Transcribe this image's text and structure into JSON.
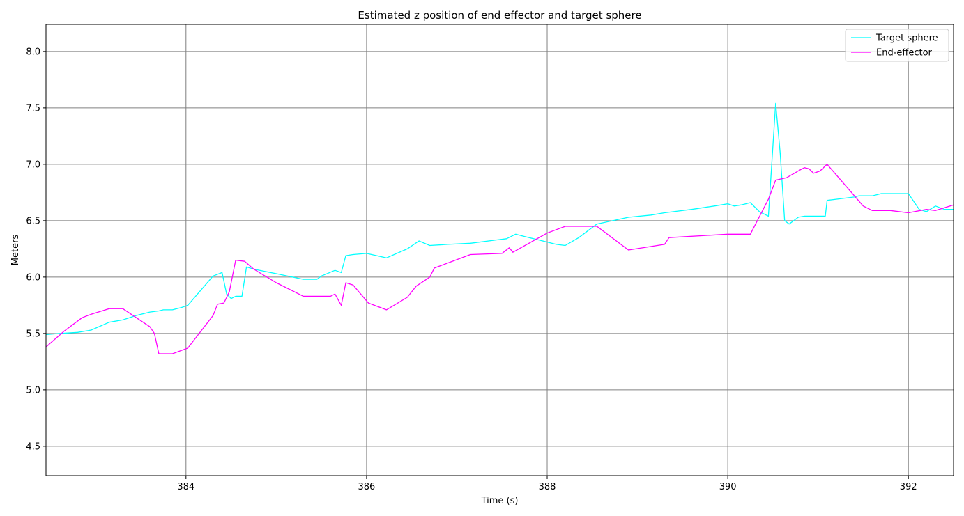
{
  "chart_data": {
    "type": "line",
    "title": "Estimated z position of end effector and target sphere",
    "xlabel": "Time (s)",
    "ylabel": "Meters",
    "xlim": [
      382.45,
      392.5
    ],
    "ylim": [
      4.24,
      8.24
    ],
    "xticks": [
      384,
      386,
      388,
      390,
      392
    ],
    "yticks": [
      4.5,
      5.0,
      5.5,
      6.0,
      6.5,
      7.0,
      7.5,
      8.0
    ],
    "xtick_labels": [
      "384",
      "386",
      "388",
      "390",
      "392"
    ],
    "ytick_labels": [
      "4.5",
      "5.0",
      "5.5",
      "6.0",
      "6.5",
      "7.0",
      "7.5",
      "8.0"
    ],
    "grid": true,
    "legend_position": "top-right",
    "series": [
      {
        "name": "Target sphere",
        "color": "#00ffff",
        "x": [
          382.45,
          382.6,
          382.8,
          382.95,
          383.15,
          383.3,
          383.45,
          383.6,
          383.7,
          383.75,
          383.85,
          383.95,
          384.02,
          384.3,
          384.4,
          384.45,
          384.5,
          384.55,
          384.62,
          384.67,
          384.75,
          385.0,
          385.3,
          385.45,
          385.5,
          385.65,
          385.72,
          385.77,
          385.85,
          386.0,
          386.22,
          386.45,
          386.58,
          386.7,
          386.9,
          387.15,
          387.45,
          387.55,
          387.65,
          387.75,
          387.9,
          388.1,
          388.2,
          388.35,
          388.55,
          388.9,
          389.15,
          389.3,
          389.4,
          389.6,
          389.85,
          390.0,
          390.07,
          390.15,
          390.25,
          390.35,
          390.45,
          390.53,
          390.58,
          390.63,
          390.68,
          390.78,
          390.85,
          390.95,
          391.08,
          391.1,
          391.2,
          391.4,
          391.45,
          391.6,
          391.7,
          391.8,
          391.95,
          392.0,
          392.12,
          392.2,
          392.24,
          392.3,
          392.4,
          392.5
        ],
        "y": [
          5.49,
          5.5,
          5.51,
          5.53,
          5.6,
          5.62,
          5.66,
          5.69,
          5.7,
          5.71,
          5.71,
          5.73,
          5.75,
          6.01,
          6.04,
          5.85,
          5.81,
          5.83,
          5.83,
          6.09,
          6.07,
          6.03,
          5.98,
          5.98,
          6.01,
          6.06,
          6.04,
          6.19,
          6.2,
          6.21,
          6.17,
          6.25,
          6.32,
          6.28,
          6.29,
          6.3,
          6.33,
          6.34,
          6.38,
          6.36,
          6.33,
          6.29,
          6.28,
          6.35,
          6.47,
          6.53,
          6.55,
          6.57,
          6.58,
          6.6,
          6.63,
          6.65,
          6.63,
          6.64,
          6.66,
          6.58,
          6.54,
          7.54,
          7.1,
          6.5,
          6.47,
          6.53,
          6.54,
          6.54,
          6.54,
          6.68,
          6.69,
          6.71,
          6.72,
          6.72,
          6.74,
          6.74,
          6.74,
          6.74,
          6.6,
          6.58,
          6.6,
          6.63,
          6.6,
          6.6
        ]
      },
      {
        "name": "End-effector",
        "color": "#ff00ff",
        "x": [
          382.45,
          382.65,
          382.85,
          382.95,
          383.15,
          383.3,
          383.6,
          383.65,
          383.7,
          383.85,
          384.02,
          384.3,
          384.35,
          384.42,
          384.48,
          384.55,
          384.65,
          384.75,
          385.0,
          385.3,
          385.6,
          385.65,
          385.72,
          385.77,
          385.85,
          386.02,
          386.22,
          386.45,
          386.55,
          386.7,
          386.75,
          387.15,
          387.5,
          387.58,
          387.62,
          388.0,
          388.2,
          388.4,
          388.55,
          388.9,
          389.3,
          389.35,
          390.0,
          390.25,
          390.45,
          390.53,
          390.65,
          390.8,
          390.85,
          390.9,
          390.95,
          391.02,
          391.1,
          391.5,
          391.6,
          391.8,
          392.0,
          392.2,
          392.3,
          392.5
        ],
        "y": [
          5.38,
          5.52,
          5.64,
          5.67,
          5.72,
          5.72,
          5.56,
          5.5,
          5.32,
          5.32,
          5.37,
          5.66,
          5.76,
          5.77,
          5.87,
          6.15,
          6.14,
          6.07,
          5.95,
          5.83,
          5.83,
          5.85,
          5.75,
          5.95,
          5.93,
          5.77,
          5.71,
          5.82,
          5.92,
          6.0,
          6.08,
          6.2,
          6.21,
          6.26,
          6.22,
          6.39,
          6.45,
          6.45,
          6.45,
          6.24,
          6.29,
          6.35,
          6.38,
          6.38,
          6.69,
          6.86,
          6.88,
          6.95,
          6.97,
          6.96,
          6.92,
          6.94,
          7.0,
          6.63,
          6.59,
          6.59,
          6.57,
          6.6,
          6.59,
          6.64
        ]
      }
    ]
  }
}
